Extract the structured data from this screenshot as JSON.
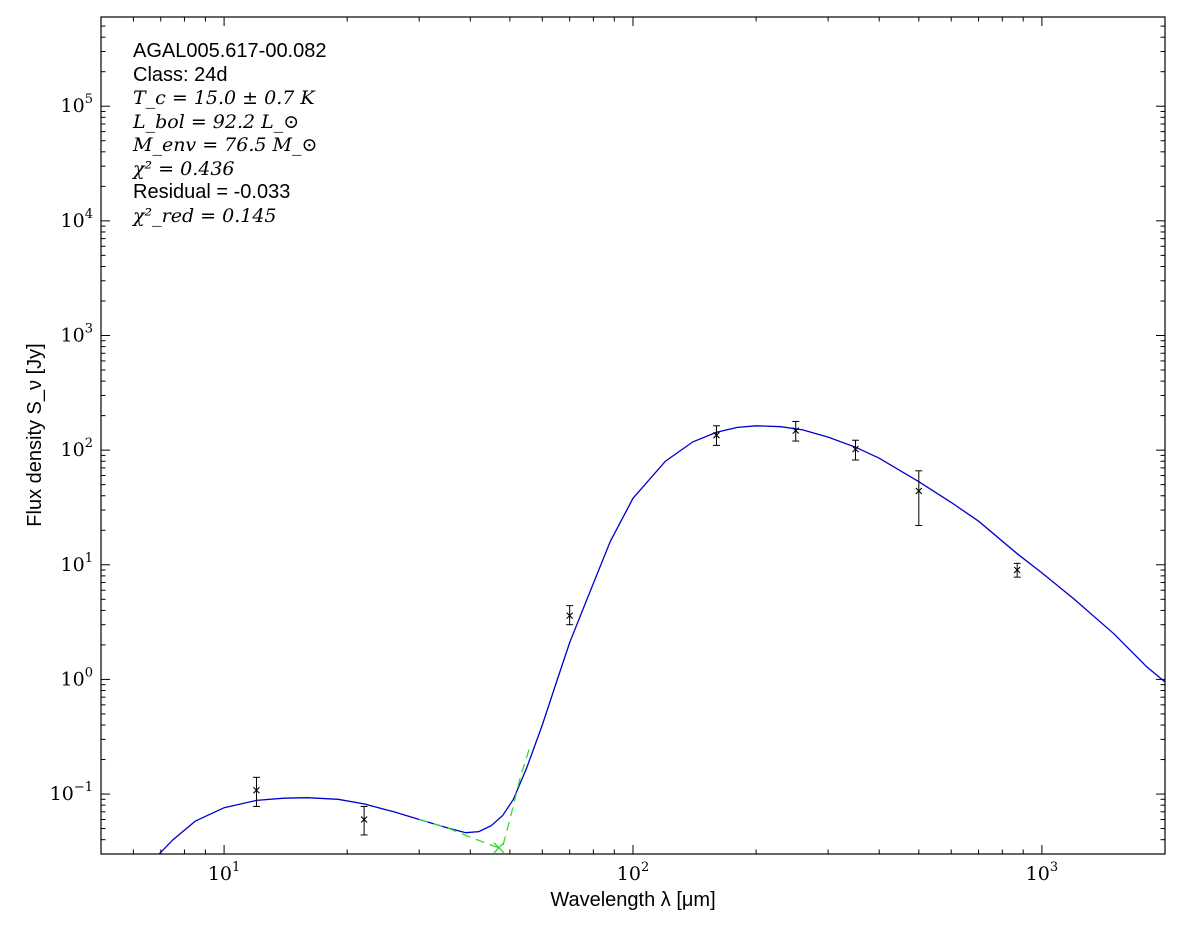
{
  "chart_data": {
    "type": "line",
    "scale": {
      "x": "log",
      "y": "log"
    },
    "xlim": [
      5,
      2000
    ],
    "ylim": [
      0.03,
      600000
    ],
    "xlabel": "Wavelength λ [μm]",
    "ylabel": "Flux density S_ν [Jy]",
    "x_ticks": [
      {
        "value": 10,
        "base": "10",
        "exp": "1"
      },
      {
        "value": 100,
        "base": "10",
        "exp": "2"
      },
      {
        "value": 1000,
        "base": "10",
        "exp": "3"
      }
    ],
    "y_ticks": [
      {
        "value": 0.1,
        "base": "10",
        "exp": "−1"
      },
      {
        "value": 1,
        "base": "10",
        "exp": "0"
      },
      {
        "value": 10,
        "base": "10",
        "exp": "1"
      },
      {
        "value": 100,
        "base": "10",
        "exp": "2"
      },
      {
        "value": 1000,
        "base": "10",
        "exp": "3"
      },
      {
        "value": 10000,
        "base": "10",
        "exp": "4"
      },
      {
        "value": 100000,
        "base": "10",
        "exp": "5"
      }
    ],
    "annotation": {
      "source": "AGAL005.617-00.082",
      "class": "Class: 24d",
      "tc": "T_c = 15.0 ± 0.7 K",
      "lbol": "L_bol = 92.2 L_⊙",
      "menv": "M_env = 76.5 M_⊙",
      "chi2": "χ² = 0.436",
      "residual": "Residual = -0.033",
      "chi2red": "χ²_red = 0.145"
    },
    "series": [
      {
        "color": "#0000cc",
        "style": "solid",
        "points": [
          [
            6.6,
            0.025
          ],
          [
            7.5,
            0.04
          ],
          [
            8.5,
            0.058
          ],
          [
            10,
            0.076
          ],
          [
            12,
            0.088
          ],
          [
            14,
            0.092
          ],
          [
            16,
            0.093
          ],
          [
            19,
            0.09
          ],
          [
            22,
            0.082
          ],
          [
            26,
            0.07
          ],
          [
            30,
            0.06
          ],
          [
            35,
            0.051
          ],
          [
            39,
            0.046
          ],
          [
            42,
            0.047
          ],
          [
            45,
            0.053
          ],
          [
            48,
            0.065
          ],
          [
            51,
            0.09
          ],
          [
            55,
            0.17
          ],
          [
            60,
            0.4
          ],
          [
            65,
            0.95
          ],
          [
            70,
            2.1
          ],
          [
            78,
            5.5
          ],
          [
            88,
            16
          ],
          [
            100,
            38
          ],
          [
            120,
            80
          ],
          [
            140,
            118
          ],
          [
            160,
            143
          ],
          [
            180,
            158
          ],
          [
            200,
            163
          ],
          [
            230,
            160
          ],
          [
            260,
            150
          ],
          [
            300,
            130
          ],
          [
            350,
            106
          ],
          [
            400,
            85
          ],
          [
            500,
            53
          ],
          [
            600,
            35
          ],
          [
            700,
            24
          ],
          [
            870,
            12.5
          ],
          [
            1000,
            8.5
          ],
          [
            1200,
            5
          ],
          [
            1500,
            2.5
          ],
          [
            1800,
            1.3
          ],
          [
            2000,
            0.95
          ]
        ]
      },
      {
        "color": "#33dd33",
        "style": "dashed",
        "points": [
          [
            30,
            0.06
          ],
          [
            35,
            0.051
          ],
          [
            40,
            0.042
          ],
          [
            44,
            0.037
          ],
          [
            47,
            0.034
          ],
          [
            48,
            0.035
          ],
          [
            50,
            0.06
          ],
          [
            53,
            0.14
          ],
          [
            56,
            0.26
          ]
        ]
      }
    ],
    "data_points": [
      {
        "x": 12,
        "y": 0.108,
        "ylo": 0.078,
        "yhi": 0.14
      },
      {
        "x": 22,
        "y": 0.06,
        "ylo": 0.044,
        "yhi": 0.078
      },
      {
        "x": 70,
        "y": 3.6,
        "ylo": 3.0,
        "yhi": 4.4
      },
      {
        "x": 160,
        "y": 135,
        "ylo": 110,
        "yhi": 163
      },
      {
        "x": 250,
        "y": 148,
        "ylo": 120,
        "yhi": 178
      },
      {
        "x": 350,
        "y": 102,
        "ylo": 82,
        "yhi": 122
      },
      {
        "x": 500,
        "y": 44,
        "ylo": 22,
        "yhi": 66
      },
      {
        "x": 870,
        "y": 9.0,
        "ylo": 7.8,
        "yhi": 10.3
      }
    ],
    "model_marks": [
      {
        "x": 47,
        "y": 0.034
      }
    ]
  }
}
